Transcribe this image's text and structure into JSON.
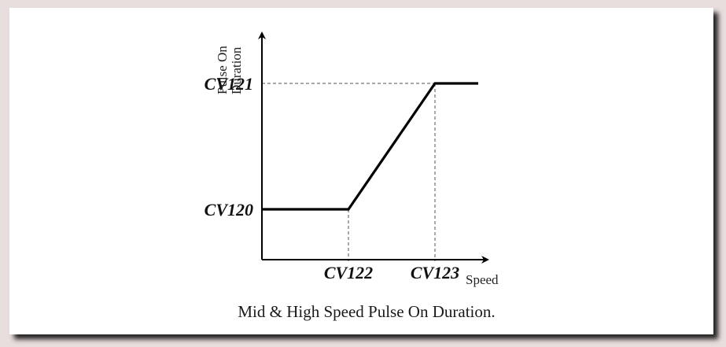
{
  "chart_data": {
    "type": "line",
    "title": "",
    "caption": "Mid & High Speed Pulse On Duration.",
    "xlabel": "Speed",
    "ylabel_lines": [
      "Pulse On",
      "Duration"
    ],
    "x_ticks": [
      {
        "label": "CV122",
        "value": 1
      },
      {
        "label": "CV123",
        "value": 2
      }
    ],
    "y_ticks": [
      {
        "label": "CV120",
        "value": 1
      },
      {
        "label": "CV121",
        "value": 2
      }
    ],
    "xlim": [
      0,
      2.5
    ],
    "ylim": [
      0.6,
      2.4
    ],
    "series": [
      {
        "x": [
          0,
          1,
          2,
          2.5
        ],
        "y": [
          1,
          1,
          2,
          2
        ]
      }
    ],
    "grid": false,
    "colors": {
      "line": "#000000",
      "axis": "#000000",
      "guide": "#555555"
    }
  }
}
